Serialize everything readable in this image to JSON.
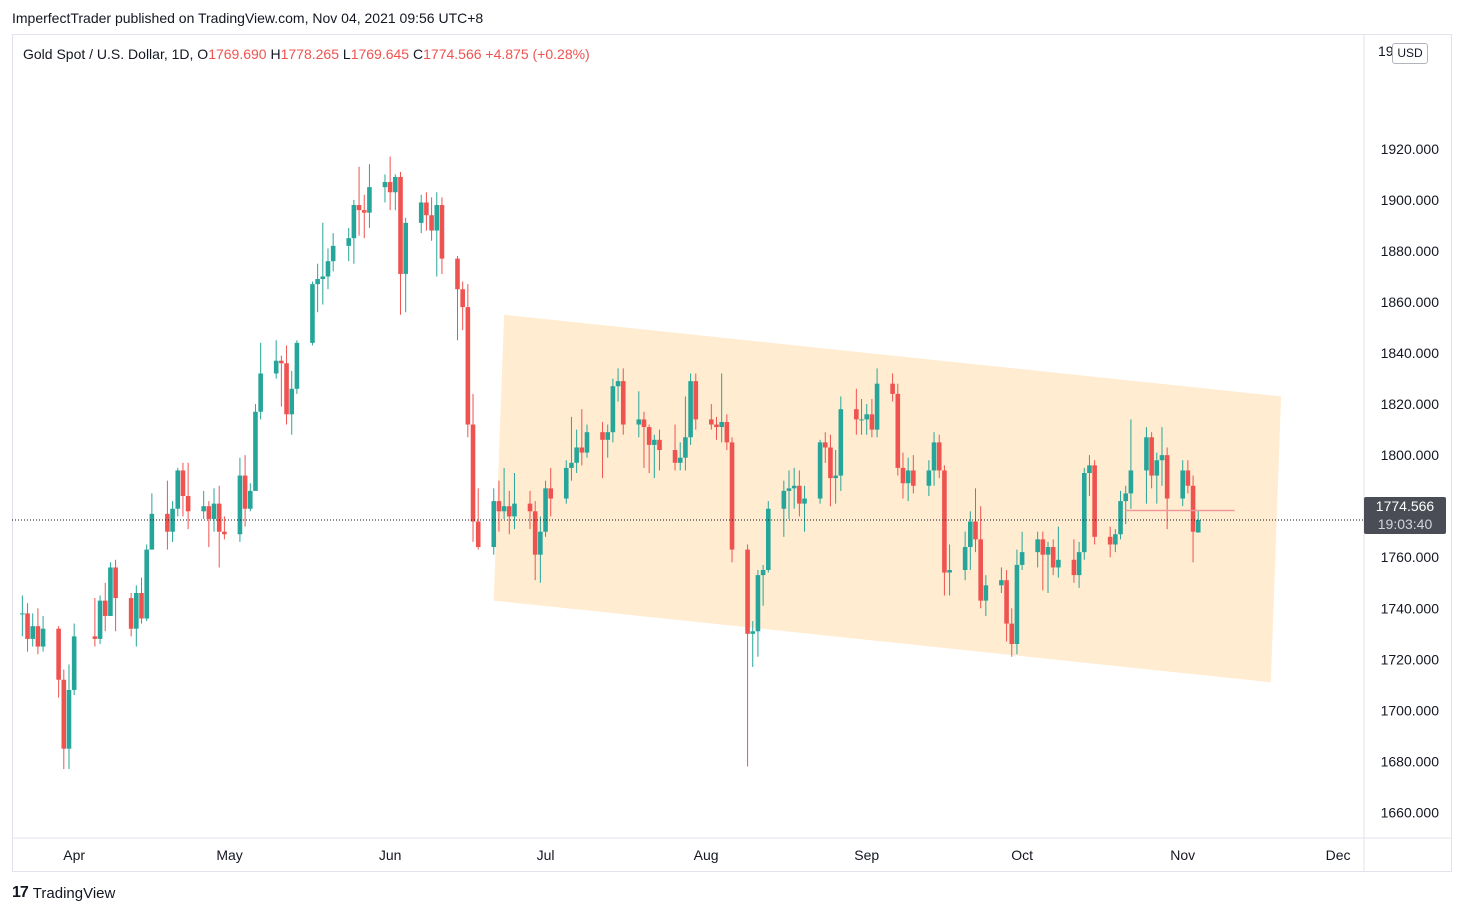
{
  "header": {
    "publish_note": "ImperfectTrader published on TradingView.com, Nov 04, 2021 09:56 UTC+8"
  },
  "legend": {
    "symbol": "Gold Spot / U.S. Dollar, 1D,",
    "o_label": "O",
    "o_value": "1769.690",
    "h_label": "H",
    "h_value": "1778.265",
    "l_label": "L",
    "l_value": "1769.645",
    "c_label": "C",
    "c_value": "1774.566",
    "change": "+4.875 (+0.28%)"
  },
  "price_axis": {
    "currency": "USD",
    "partial_top_label": "19",
    "current_price": "1774.566",
    "countdown": "19:03:40"
  },
  "footer": {
    "brand": "TradingView",
    "logo_glyph": "17"
  },
  "colors": {
    "up": "#26a69a",
    "down": "#ef5350",
    "channel": "#ffe0b2",
    "axis_text": "#131722"
  },
  "chart_data": {
    "type": "candlestick",
    "title": "",
    "symbol": "XAUUSD",
    "interval": "1D",
    "ylim": [
      1650,
      1965
    ],
    "y_ticks": [
      1660,
      1680,
      1700,
      1720,
      1740,
      1760,
      1780,
      1800,
      1820,
      1840,
      1860,
      1880,
      1900,
      1920
    ],
    "x_ticks": [
      {
        "label": "Apr",
        "date": "2021-04-01"
      },
      {
        "label": "May",
        "date": "2021-05-01"
      },
      {
        "label": "Jun",
        "date": "2021-06-01"
      },
      {
        "label": "Jul",
        "date": "2021-07-01"
      },
      {
        "label": "Aug",
        "date": "2021-08-01"
      },
      {
        "label": "Sep",
        "date": "2021-09-01"
      },
      {
        "label": "Oct",
        "date": "2021-10-01"
      },
      {
        "label": "Nov",
        "date": "2021-11-01"
      },
      {
        "label": "Dec",
        "date": "2021-12-01"
      }
    ],
    "x_range": [
      "2021-03-20",
      "2021-12-06"
    ],
    "current_price": 1774.566,
    "grid": false,
    "channel": {
      "upper": [
        {
          "date": "2021-06-23",
          "price": 1855
        },
        {
          "date": "2021-11-20",
          "price": 1823
        }
      ],
      "lower": [
        {
          "date": "2021-06-21",
          "price": 1743
        },
        {
          "date": "2021-11-18",
          "price": 1711
        }
      ]
    },
    "candles": [
      [
        "2021-03-22",
        1738,
        1745,
        1729,
        1738
      ],
      [
        "2021-03-23",
        1738,
        1742,
        1723,
        1728
      ],
      [
        "2021-03-24",
        1728,
        1738,
        1725,
        1733
      ],
      [
        "2021-03-25",
        1733,
        1740,
        1722,
        1725
      ],
      [
        "2021-03-26",
        1725,
        1737,
        1723,
        1732
      ],
      [
        "2021-03-29",
        1732,
        1733,
        1705,
        1712
      ],
      [
        "2021-03-30",
        1712,
        1716,
        1677,
        1685
      ],
      [
        "2021-03-31",
        1685,
        1718,
        1677,
        1708
      ],
      [
        "2021-04-01",
        1708,
        1734,
        1706,
        1729
      ],
      [
        "2021-04-05",
        1729,
        1744,
        1725,
        1728
      ],
      [
        "2021-04-06",
        1728,
        1745,
        1726,
        1743
      ],
      [
        "2021-04-07",
        1743,
        1750,
        1731,
        1737
      ],
      [
        "2021-04-08",
        1737,
        1758,
        1737,
        1756
      ],
      [
        "2021-04-09",
        1756,
        1759,
        1731,
        1744
      ],
      [
        "2021-04-12",
        1744,
        1746,
        1729,
        1732
      ],
      [
        "2021-04-13",
        1732,
        1749,
        1725,
        1746
      ],
      [
        "2021-04-14",
        1746,
        1752,
        1734,
        1736
      ],
      [
        "2021-04-15",
        1736,
        1765,
        1735,
        1763
      ],
      [
        "2021-04-16",
        1763,
        1785,
        1763,
        1777
      ],
      [
        "2021-04-19",
        1777,
        1790,
        1763,
        1770
      ],
      [
        "2021-04-20",
        1770,
        1782,
        1766,
        1779
      ],
      [
        "2021-04-21",
        1779,
        1795,
        1776,
        1794
      ],
      [
        "2021-04-22",
        1794,
        1797,
        1776,
        1784
      ],
      [
        "2021-04-23",
        1784,
        1797,
        1771,
        1778
      ],
      [
        "2021-04-26",
        1778,
        1786,
        1775,
        1780
      ],
      [
        "2021-04-27",
        1780,
        1782,
        1764,
        1775
      ],
      [
        "2021-04-28",
        1775,
        1787,
        1770,
        1781
      ],
      [
        "2021-04-29",
        1781,
        1788,
        1756,
        1770
      ],
      [
        "2021-04-30",
        1770,
        1776,
        1767,
        1769
      ],
      [
        "2021-05-03",
        1769,
        1799,
        1766,
        1792
      ],
      [
        "2021-05-04",
        1792,
        1800,
        1772,
        1779
      ],
      [
        "2021-05-05",
        1779,
        1789,
        1778,
        1786
      ],
      [
        "2021-05-06",
        1786,
        1820,
        1786,
        1817
      ],
      [
        "2021-05-07",
        1817,
        1844,
        1814,
        1832
      ],
      [
        "2021-05-10",
        1832,
        1845,
        1830,
        1837
      ],
      [
        "2021-05-11",
        1837,
        1839,
        1819,
        1836
      ],
      [
        "2021-05-12",
        1836,
        1843,
        1812,
        1816
      ],
      [
        "2021-05-13",
        1816,
        1833,
        1808,
        1826
      ],
      [
        "2021-05-14",
        1826,
        1845,
        1824,
        1844
      ],
      [
        "2021-05-17",
        1844,
        1868,
        1843,
        1867
      ],
      [
        "2021-05-18",
        1867,
        1875,
        1856,
        1869
      ],
      [
        "2021-05-19",
        1869,
        1891,
        1859,
        1870
      ],
      [
        "2021-05-20",
        1870,
        1881,
        1865,
        1876
      ],
      [
        "2021-05-21",
        1876,
        1887,
        1872,
        1882
      ],
      [
        "2021-05-24",
        1882,
        1889,
        1876,
        1885
      ],
      [
        "2021-05-25",
        1885,
        1900,
        1875,
        1898
      ],
      [
        "2021-05-26",
        1898,
        1913,
        1886,
        1896
      ],
      [
        "2021-05-27",
        1896,
        1902,
        1885,
        1895
      ],
      [
        "2021-05-28",
        1895,
        1914,
        1889,
        1905
      ],
      [
        "2021-05-31",
        1905,
        1910,
        1899,
        1907
      ],
      [
        "2021-06-01",
        1907,
        1917,
        1896,
        1903
      ],
      [
        "2021-06-02",
        1903,
        1910,
        1896,
        1909
      ],
      [
        "2021-06-03",
        1909,
        1911,
        1855,
        1871
      ],
      [
        "2021-06-04",
        1871,
        1893,
        1856,
        1891
      ],
      [
        "2021-06-07",
        1891,
        1902,
        1887,
        1899
      ],
      [
        "2021-06-08",
        1899,
        1903,
        1888,
        1894
      ],
      [
        "2021-06-09",
        1894,
        1901,
        1884,
        1888
      ],
      [
        "2021-06-10",
        1888,
        1903,
        1870,
        1898
      ],
      [
        "2021-06-11",
        1898,
        1901,
        1871,
        1877
      ],
      [
        "2021-06-14",
        1877,
        1878,
        1845,
        1865
      ],
      [
        "2021-06-15",
        1865,
        1868,
        1849,
        1858
      ],
      [
        "2021-06-16",
        1858,
        1867,
        1807,
        1812
      ],
      [
        "2021-06-17",
        1812,
        1824,
        1766,
        1774
      ],
      [
        "2021-06-18",
        1774,
        1787,
        1763,
        1764
      ],
      [
        "2021-06-21",
        1764,
        1787,
        1761,
        1782
      ],
      [
        "2021-06-22",
        1782,
        1790,
        1770,
        1778
      ],
      [
        "2021-06-23",
        1778,
        1795,
        1775,
        1780
      ],
      [
        "2021-06-24",
        1780,
        1786,
        1769,
        1776
      ],
      [
        "2021-06-25",
        1776,
        1793,
        1771,
        1781
      ],
      [
        "2021-06-28",
        1781,
        1786,
        1771,
        1778
      ],
      [
        "2021-06-29",
        1778,
        1782,
        1751,
        1761
      ],
      [
        "2021-06-30",
        1761,
        1776,
        1750,
        1770
      ],
      [
        "2021-07-01",
        1770,
        1790,
        1768,
        1787
      ],
      [
        "2021-07-02",
        1787,
        1795,
        1776,
        1783
      ],
      [
        "2021-07-05",
        1783,
        1798,
        1781,
        1795
      ],
      [
        "2021-07-06",
        1795,
        1815,
        1790,
        1797
      ],
      [
        "2021-07-07",
        1797,
        1810,
        1793,
        1803
      ],
      [
        "2021-07-08",
        1803,
        1818,
        1796,
        1801
      ],
      [
        "2021-07-09",
        1801,
        1812,
        1799,
        1809
      ],
      [
        "2021-07-12",
        1809,
        1813,
        1791,
        1806
      ],
      [
        "2021-07-13",
        1806,
        1812,
        1799,
        1809
      ],
      [
        "2021-07-14",
        1809,
        1830,
        1805,
        1827
      ],
      [
        "2021-07-15",
        1827,
        1834,
        1821,
        1829
      ],
      [
        "2021-07-16",
        1829,
        1834,
        1808,
        1812
      ],
      [
        "2021-07-19",
        1812,
        1825,
        1807,
        1814
      ],
      [
        "2021-07-20",
        1814,
        1817,
        1795,
        1811
      ],
      [
        "2021-07-21",
        1811,
        1812,
        1793,
        1804
      ],
      [
        "2021-07-22",
        1804,
        1808,
        1791,
        1806
      ],
      [
        "2021-07-23",
        1806,
        1810,
        1794,
        1802
      ],
      [
        "2021-07-26",
        1802,
        1812,
        1794,
        1797
      ],
      [
        "2021-07-27",
        1797,
        1805,
        1794,
        1799
      ],
      [
        "2021-07-28",
        1799,
        1823,
        1794,
        1807
      ],
      [
        "2021-07-29",
        1807,
        1832,
        1804,
        1829
      ],
      [
        "2021-07-30",
        1829,
        1832,
        1810,
        1814
      ],
      [
        "2021-08-02",
        1814,
        1820,
        1810,
        1812
      ],
      [
        "2021-08-03",
        1812,
        1815,
        1806,
        1811
      ],
      [
        "2021-08-04",
        1811,
        1832,
        1805,
        1813
      ],
      [
        "2021-08-05",
        1813,
        1816,
        1802,
        1805
      ],
      [
        "2021-08-06",
        1805,
        1807,
        1758,
        1763
      ],
      [
        "2021-08-09",
        1763,
        1765,
        1678,
        1730
      ],
      [
        "2021-08-10",
        1730,
        1735,
        1717,
        1731
      ],
      [
        "2021-08-11",
        1731,
        1755,
        1721,
        1753
      ],
      [
        "2021-08-12",
        1753,
        1757,
        1741,
        1755
      ],
      [
        "2021-08-13",
        1755,
        1782,
        1754,
        1779
      ],
      [
        "2021-08-16",
        1779,
        1790,
        1768,
        1786
      ],
      [
        "2021-08-17",
        1786,
        1794,
        1775,
        1787
      ],
      [
        "2021-08-18",
        1787,
        1795,
        1779,
        1788
      ],
      [
        "2021-08-19",
        1788,
        1794,
        1776,
        1781
      ],
      [
        "2021-08-20",
        1781,
        1788,
        1770,
        1783
      ],
      [
        "2021-08-23",
        1783,
        1806,
        1781,
        1805
      ],
      [
        "2021-08-24",
        1805,
        1809,
        1797,
        1803
      ],
      [
        "2021-08-25",
        1803,
        1808,
        1780,
        1791
      ],
      [
        "2021-08-26",
        1791,
        1802,
        1781,
        1792
      ],
      [
        "2021-08-27",
        1792,
        1823,
        1786,
        1818
      ],
      [
        "2021-08-30",
        1818,
        1826,
        1808,
        1814
      ],
      [
        "2021-08-31",
        1814,
        1822,
        1808,
        1814
      ],
      [
        "2021-09-01",
        1814,
        1820,
        1808,
        1816
      ],
      [
        "2021-09-02",
        1816,
        1822,
        1807,
        1810
      ],
      [
        "2021-09-03",
        1810,
        1834,
        1807,
        1828
      ],
      [
        "2021-09-06",
        1828,
        1832,
        1821,
        1824
      ],
      [
        "2021-09-07",
        1824,
        1828,
        1792,
        1795
      ],
      [
        "2021-09-08",
        1795,
        1801,
        1783,
        1789
      ],
      [
        "2021-09-09",
        1789,
        1799,
        1782,
        1794
      ],
      [
        "2021-09-10",
        1794,
        1800,
        1785,
        1788
      ],
      [
        "2021-09-13",
        1788,
        1798,
        1784,
        1794
      ],
      [
        "2021-09-14",
        1794,
        1809,
        1788,
        1805
      ],
      [
        "2021-09-15",
        1805,
        1808,
        1791,
        1794
      ],
      [
        "2021-09-16",
        1794,
        1796,
        1745,
        1754
      ],
      [
        "2021-09-17",
        1754,
        1765,
        1745,
        1755
      ],
      [
        "2021-09-20",
        1755,
        1770,
        1751,
        1764
      ],
      [
        "2021-09-21",
        1764,
        1778,
        1755,
        1774
      ],
      [
        "2021-09-22",
        1774,
        1787,
        1762,
        1767
      ],
      [
        "2021-09-23",
        1767,
        1780,
        1740,
        1743
      ],
      [
        "2021-09-24",
        1743,
        1753,
        1737,
        1749
      ],
      [
        "2021-09-27",
        1749,
        1756,
        1746,
        1751
      ],
      [
        "2021-09-28",
        1751,
        1755,
        1727,
        1734
      ],
      [
        "2021-09-29",
        1734,
        1740,
        1721,
        1726
      ],
      [
        "2021-09-30",
        1726,
        1763,
        1722,
        1757
      ],
      [
        "2021-10-01",
        1757,
        1770,
        1755,
        1762
      ],
      [
        "2021-10-04",
        1762,
        1770,
        1756,
        1767
      ],
      [
        "2021-10-05",
        1767,
        1770,
        1747,
        1761
      ],
      [
        "2021-10-06",
        1761,
        1766,
        1746,
        1764
      ],
      [
        "2021-10-07",
        1764,
        1767,
        1753,
        1756
      ],
      [
        "2021-10-08",
        1756,
        1772,
        1752,
        1759
      ],
      [
        "2021-10-11",
        1759,
        1767,
        1750,
        1753
      ],
      [
        "2021-10-12",
        1753,
        1766,
        1748,
        1762
      ],
      [
        "2021-10-13",
        1762,
        1795,
        1759,
        1793
      ],
      [
        "2021-10-14",
        1793,
        1800,
        1784,
        1796
      ],
      [
        "2021-10-15",
        1796,
        1798,
        1765,
        1768
      ],
      [
        "2021-10-18",
        1768,
        1772,
        1760,
        1765
      ],
      [
        "2021-10-19",
        1765,
        1771,
        1762,
        1769
      ],
      [
        "2021-10-20",
        1769,
        1786,
        1767,
        1782
      ],
      [
        "2021-10-21",
        1782,
        1788,
        1773,
        1785
      ],
      [
        "2021-10-22",
        1785,
        1814,
        1779,
        1794
      ],
      [
        "2021-10-25",
        1794,
        1811,
        1781,
        1807
      ],
      [
        "2021-10-26",
        1807,
        1809,
        1787,
        1792
      ],
      [
        "2021-10-27",
        1792,
        1801,
        1781,
        1798
      ],
      [
        "2021-10-28",
        1798,
        1811,
        1788,
        1800
      ],
      [
        "2021-10-29",
        1800,
        1803,
        1771,
        1783
      ],
      [
        "2021-11-01",
        1783,
        1798,
        1780,
        1794
      ],
      [
        "2021-11-02",
        1794,
        1798,
        1785,
        1788
      ],
      [
        "2021-11-03",
        1788,
        1792,
        1758,
        1770
      ],
      [
        "2021-11-04",
        1769.69,
        1778.265,
        1769.645,
        1774.566
      ]
    ]
  }
}
